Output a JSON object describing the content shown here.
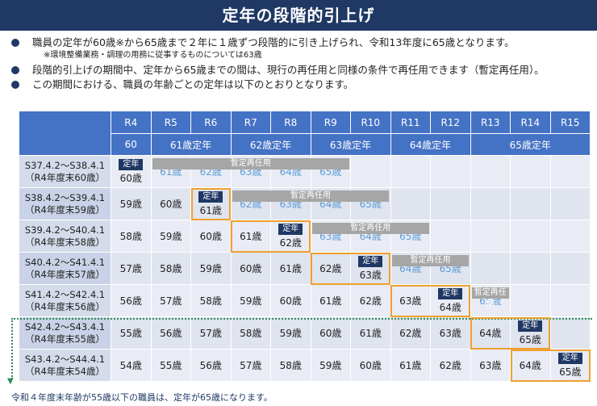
{
  "title": "定年の段階的引上げ",
  "bullets": [
    "職員の定年が60歳※から65歳まで２年に１歳ずつ段階的に引き上げられ、令和13年度に65歳となります。",
    "段階的引上げの期間中、定年から65歳までの間は、現行の再任用と同様の条件で再任用できます（暫定再任用）。",
    "この期間における、職員の年齢ごとの定年は以下のとおりとなります。"
  ],
  "note": "※環境整備業務・調理の用務に従事するものについては63歳",
  "years": [
    "R4",
    "R5",
    "R6",
    "R7",
    "R8",
    "R9",
    "R10",
    "R11",
    "R12",
    "R13",
    "R14",
    "R15"
  ],
  "retire_ages": [
    "60",
    "61歳定年",
    "62歳定年",
    "63歳定年",
    "64歳定年",
    "65歳定年"
  ],
  "badge_label": "定年",
  "grey_label": "暫定再任用",
  "rows": [
    {
      "label1": "S37.4.2～S38.4.1",
      "label2": "（R4年度末60歳）",
      "ages": [
        "60歳",
        "61歳",
        "62歳",
        "63歳",
        "64歳",
        "65歳",
        "",
        "",
        "",
        "",
        "",
        ""
      ]
    },
    {
      "label1": "S38.4.2～S39.4.1",
      "label2": "（R4年度末59歳）",
      "ages": [
        "59歳",
        "60歳",
        "61歳",
        "62歳",
        "63歳",
        "64歳",
        "65歳",
        "",
        "",
        "",
        "",
        ""
      ]
    },
    {
      "label1": "S39.4.2～S40.4.1",
      "label2": "（R4年度末58歳）",
      "ages": [
        "58歳",
        "59歳",
        "60歳",
        "61歳",
        "62歳",
        "63歳",
        "64歳",
        "65歳",
        "",
        "",
        "",
        ""
      ]
    },
    {
      "label1": "S40.4.2～S41.4.1",
      "label2": "（R4年度末57歳）",
      "ages": [
        "57歳",
        "58歳",
        "59歳",
        "60歳",
        "61歳",
        "62歳",
        "63歳",
        "64歳",
        "65歳",
        "",
        "",
        ""
      ]
    },
    {
      "label1": "S41.4.2～S42.4.1",
      "label2": "（R4年度末56歳）",
      "ages": [
        "56歳",
        "57歳",
        "58歳",
        "59歳",
        "60歳",
        "61歳",
        "62歳",
        "63歳",
        "64歳",
        "65歳",
        "",
        ""
      ]
    },
    {
      "label1": "S42.4.2～S43.4.1",
      "label2": "（R4年度末55歳）",
      "ages": [
        "55歳",
        "56歳",
        "57歳",
        "58歳",
        "59歳",
        "60歳",
        "61歳",
        "62歳",
        "63歳",
        "64歳",
        "65歳",
        ""
      ]
    },
    {
      "label1": "S43.4.2～S44.4.1",
      "label2": "（R4年度末54歳）",
      "ages": [
        "54歳",
        "55歳",
        "56歳",
        "57歳",
        "58歳",
        "59歳",
        "60歳",
        "61歳",
        "62歳",
        "63歳",
        "64歳",
        "65歳"
      ]
    }
  ],
  "footer": "令和４年度末年齢が55歳以下の職員は、定年が65歳になります。",
  "colors": {
    "header_bg": "#1f3864",
    "table_header": "#4472c4",
    "orange": "#f0a030",
    "pale_text": "#5b9bd5",
    "green_dotted": "#2e8b57"
  }
}
